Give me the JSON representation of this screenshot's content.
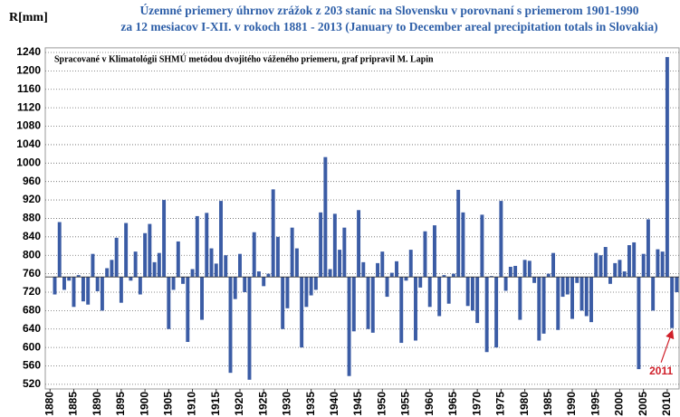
{
  "chart_data": {
    "type": "bar",
    "title": [
      "Územné priemery úhrnov zrážok  z 203 staníc na Slovensku v porovnaní s priemerom 1901-1990",
      "za 12 mesiacov I-XII. v rokoch 1881 - 2013 (January to December areal precipitation totals in Slovakia)"
    ],
    "subtitle": "Spracované v Klimatológii SHMÚ metódou dvojitého váženého priemeru, graf pripravil M. Lapin",
    "y_label": "R[mm]",
    "annotation": "2011",
    "baseline": 753,
    "color": "#3b5ca5",
    "x": [
      1881,
      1882,
      1883,
      1884,
      1885,
      1886,
      1887,
      1888,
      1889,
      1890,
      1891,
      1892,
      1893,
      1894,
      1895,
      1896,
      1897,
      1898,
      1899,
      1900,
      1901,
      1902,
      1903,
      1904,
      1905,
      1906,
      1907,
      1908,
      1909,
      1910,
      1911,
      1912,
      1913,
      1914,
      1915,
      1916,
      1917,
      1918,
      1919,
      1920,
      1921,
      1922,
      1923,
      1924,
      1925,
      1926,
      1927,
      1928,
      1929,
      1930,
      1931,
      1932,
      1933,
      1934,
      1935,
      1936,
      1937,
      1938,
      1939,
      1940,
      1941,
      1942,
      1943,
      1944,
      1945,
      1946,
      1947,
      1948,
      1949,
      1950,
      1951,
      1952,
      1953,
      1954,
      1955,
      1956,
      1957,
      1958,
      1959,
      1960,
      1961,
      1962,
      1963,
      1964,
      1965,
      1966,
      1967,
      1968,
      1969,
      1970,
      1971,
      1972,
      1973,
      1974,
      1975,
      1976,
      1977,
      1978,
      1979,
      1980,
      1981,
      1982,
      1983,
      1984,
      1985,
      1986,
      1987,
      1988,
      1989,
      1990,
      1991,
      1992,
      1993,
      1994,
      1995,
      1996,
      1997,
      1998,
      1999,
      2000,
      2001,
      2002,
      2003,
      2004,
      2005,
      2006,
      2007,
      2008,
      2009,
      2010,
      2011,
      2012
    ],
    "values": [
      715,
      872,
      725,
      745,
      688,
      757,
      700,
      693,
      803,
      722,
      680,
      772,
      790,
      838,
      697,
      870,
      745,
      808,
      715,
      848,
      868,
      785,
      805,
      920,
      640,
      725,
      830,
      738,
      612,
      770,
      885,
      660,
      892,
      815,
      782,
      918,
      800,
      545,
      705,
      803,
      720,
      530,
      850,
      765,
      733,
      760,
      943,
      840,
      640,
      685,
      860,
      815,
      600,
      688,
      713,
      725,
      893,
      1013,
      770,
      890,
      812,
      860,
      538,
      635,
      898,
      785,
      640,
      632,
      783,
      808,
      710,
      762,
      787,
      610,
      745,
      812,
      615,
      730,
      852,
      688,
      865,
      668,
      757,
      695,
      760,
      942,
      893,
      690,
      680,
      653,
      888,
      590,
      755,
      600,
      918,
      723,
      775,
      777,
      660,
      790,
      788,
      740,
      615,
      630,
      760,
      805,
      638,
      710,
      715,
      662,
      740,
      680,
      668,
      655,
      805,
      800,
      818,
      738,
      783,
      790,
      765,
      822,
      828,
      553,
      803,
      878,
      680,
      813,
      808,
      1230,
      642,
      720
    ],
    "xlim": [
      1879,
      2012.5
    ],
    "xticks": [
      1880,
      1885,
      1890,
      1895,
      1900,
      1905,
      1910,
      1915,
      1920,
      1925,
      1930,
      1935,
      1940,
      1945,
      1950,
      1955,
      1960,
      1965,
      1970,
      1975,
      1980,
      1985,
      1990,
      1995,
      2000,
      2005,
      2010
    ],
    "ylim": [
      510,
      1250
    ],
    "yticks": [
      520,
      560,
      600,
      640,
      680,
      720,
      760,
      800,
      840,
      880,
      920,
      960,
      1000,
      1040,
      1080,
      1120,
      1160,
      1200,
      1240
    ],
    "grid": true
  }
}
